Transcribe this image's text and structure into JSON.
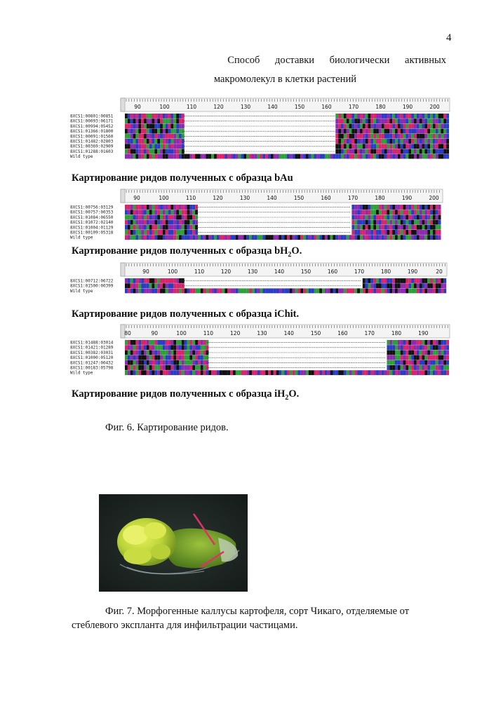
{
  "page_number": "4",
  "title": {
    "line1": "Способ доставки биологически активных",
    "line2": "макромолекул в клетки растений"
  },
  "alignments": [
    {
      "caption_prefix": "Картирование ридов полученных с образца ",
      "sample": "bAu",
      "sample_sub": "",
      "sample_suffix": "",
      "ticks": [
        "90",
        "100",
        "110",
        "120",
        "130",
        "140",
        "150",
        "160",
        "170",
        "180",
        "190",
        "200"
      ],
      "rows": [
        "8XCS1:00801:00851",
        "8XCS1:00093:06171",
        "8XCS1:00994:05452",
        "8XCS1:01366:01800",
        "8XCS1:00091:01560",
        "8XCS1:01482:02803",
        "8XCS1:00369:02909",
        "8XCS1:01288:01603",
        "Wild type"
      ]
    },
    {
      "caption_prefix": "Картирование ридов полученных с образца ",
      "sample": "bH",
      "sample_sub": "2",
      "sample_suffix": "O.",
      "ticks": [
        "90",
        "100",
        "110",
        "120",
        "130",
        "140",
        "150",
        "160",
        "170",
        "180",
        "190",
        "200"
      ],
      "rows": [
        "8XCS1:00756:03129",
        "8XCS1:00757:00353",
        "8XCS1:01084:06550",
        "8XCS1:01072:02140",
        "8XCS1:01004:01129",
        "8XCS1:00109:05318",
        "Wild type"
      ]
    },
    {
      "caption_prefix": "Картирование ридов полученных с образца ",
      "sample": "iChit",
      "sample_sub": "",
      "sample_suffix": ".",
      "ticks": [
        "90",
        "100",
        "110",
        "120",
        "130",
        "140",
        "150",
        "160",
        "170",
        "180",
        "190",
        "20"
      ],
      "rows": [
        "8XCS1:00712:06722",
        "8XCS1:01500:00399",
        "Wild type"
      ]
    },
    {
      "caption_prefix": "Картирование ридов полученных с образца ",
      "sample": "iH",
      "sample_sub": "2",
      "sample_suffix": "O.",
      "ticks": [
        "80",
        "90",
        "100",
        "110",
        "120",
        "130",
        "140",
        "150",
        "160",
        "170",
        "180",
        "190"
      ],
      "rows": [
        "8XCS1:01488:03014",
        "8XCS1:01421:01289",
        "8XCS1:00382:03031",
        "8XCS1:01000:05120",
        "8XCS1:01247:00432",
        "8XCS1:00183:05798",
        "Wild type"
      ]
    }
  ],
  "fig6_caption": "Фиг. 6. Картирование ридов.",
  "fig7_caption": "Фиг. 7. Морфогенные каллусы картофеля, сорт Чикаго, отделяемые от стеблевого экспланта для инфильтрации частицами.",
  "colors": {
    "A": "#2e9e3a",
    "C": "#2a3cc4",
    "G": "#111111",
    "T": "#d8246a",
    "P": "#8c2ab0",
    "gap": "#ffffff"
  }
}
